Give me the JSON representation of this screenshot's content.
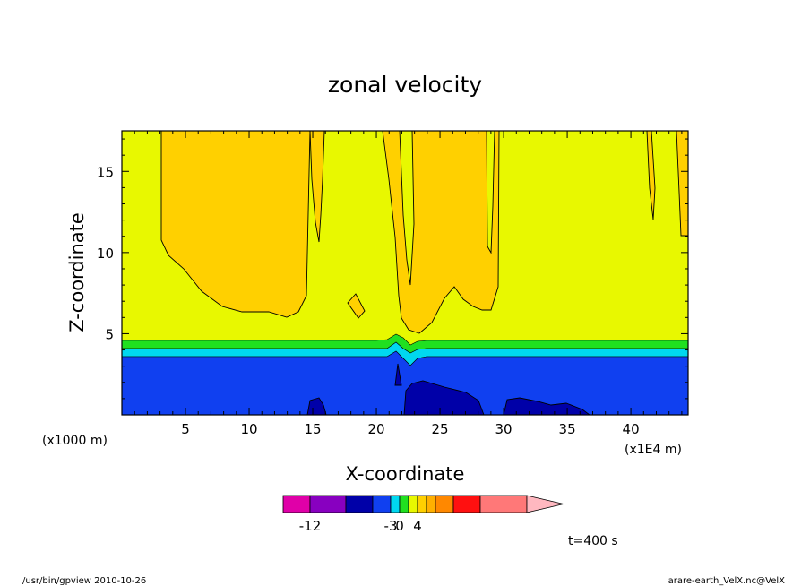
{
  "chart_data": {
    "type": "contour",
    "title": "zonal velocity",
    "xlabel": "X-coordinate",
    "ylabel": "Z-coordinate",
    "x_unit_left": "(x1000 m)",
    "x_unit_right": "(x1E4 m)",
    "xlim": [
      0,
      44.5
    ],
    "ylim": [
      0,
      17.5
    ],
    "x_ticks": [
      5,
      10,
      15,
      20,
      25,
      30,
      35,
      40
    ],
    "y_ticks": [
      5,
      10,
      15
    ],
    "x_tick_labels": [
      "5",
      "10",
      "15",
      "20",
      "25",
      "30",
      "35",
      "40"
    ],
    "y_tick_labels": [
      "5",
      "10",
      "15"
    ],
    "grid": false,
    "colorbar": {
      "bins": [
        {
          "color": "#e000a8"
        },
        {
          "color": "#8800c0"
        },
        {
          "color": "#0000a8"
        },
        {
          "color": "#1040f0"
        },
        {
          "color": "#00d8f0"
        },
        {
          "color": "#20e020"
        },
        {
          "color": "#e8f800"
        },
        {
          "color": "#ffd000"
        },
        {
          "color": "#ffb000"
        },
        {
          "color": "#ff8800"
        },
        {
          "color": "#ff1010"
        },
        {
          "color": "#ff7878"
        }
      ],
      "overflow_color": "#ffb8c0",
      "tick_labels": [
        {
          "text": "-12",
          "bin_edge": 1
        },
        {
          "text": "-3",
          "bin_edge": 4
        },
        {
          "text": "0",
          "bin_edge": 5
        },
        {
          "text": "4",
          "bin_edge": 7
        }
      ]
    },
    "regions": [
      {
        "name": "negative-layer",
        "color": "#1040f0",
        "z_top": 3.8
      },
      {
        "name": "cyan-band",
        "color": "#00d8f0",
        "z_range": [
          3.8,
          4.3
        ]
      },
      {
        "name": "green-band",
        "color": "#20e020",
        "z_range": [
          4.3,
          4.8
        ]
      },
      {
        "name": "near-zero-field",
        "color": "#e8f800",
        "z_range": [
          4.8,
          17.5
        ]
      },
      {
        "name": "positive-cells",
        "color": "#ffd000"
      },
      {
        "name": "deep-negative-cells",
        "color": "#0000a8"
      }
    ],
    "annotation": "t=400  s"
  },
  "footer": {
    "left": "/usr/bin/gpview   2010-10-26",
    "right": "arare-earth_VelX.nc@VelX"
  },
  "colors": {
    "background": "#ffffff",
    "axis": "#000000"
  }
}
